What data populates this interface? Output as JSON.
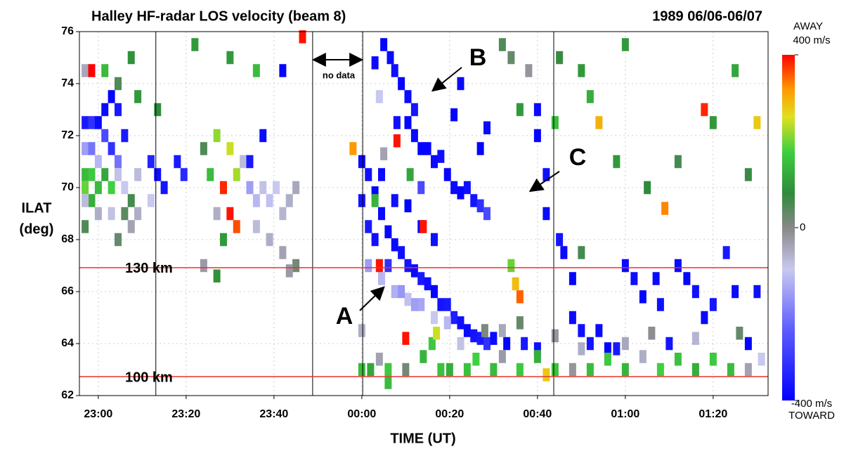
{
  "chart_data": {
    "type": "heatmap",
    "title": "Halley HF-radar LOS velocity (beam 8)",
    "subtitle": "1989 06/06-06/07",
    "ylabel": [
      "ILAT",
      "(deg)"
    ],
    "xlabel": "TIME (UT)",
    "xlim": [
      -4.3,
      152.5
    ],
    "xticks": [
      {
        "value": 0,
        "label": "23:00"
      },
      {
        "value": 20,
        "label": "23:20"
      },
      {
        "value": 40,
        "label": "23:40"
      },
      {
        "value": 60,
        "label": "00:00"
      },
      {
        "value": 80,
        "label": "00:20"
      },
      {
        "value": 100,
        "label": "00:40"
      },
      {
        "value": 120,
        "label": "01:00"
      },
      {
        "value": 140,
        "label": "01:20"
      }
    ],
    "ylim": [
      62,
      76
    ],
    "yticks": [
      62,
      64,
      66,
      68,
      70,
      72,
      74,
      76
    ],
    "grid": true,
    "clim": [
      -400,
      400
    ],
    "cticks": [
      {
        "value": 400,
        "label": "400 m/s"
      },
      {
        "value": 0,
        "label": "0"
      },
      {
        "value": -400,
        "label": "-400 m/s"
      }
    ],
    "ctop": "AWAY",
    "cbottom": "TOWARD",
    "hlines": [
      {
        "value": 66.92,
        "label": "130 km",
        "color": "#e8332f"
      },
      {
        "value": 62.73,
        "label": "100 km",
        "color": "#e8332f"
      }
    ],
    "vlines": [
      13.1,
      48.8,
      60.2,
      103.7
    ],
    "annotations": [
      "A",
      "B",
      "C",
      "no data"
    ],
    "cells": [
      [
        -3,
        72.5,
        -350
      ],
      [
        -1.5,
        72.5,
        -300
      ],
      [
        0,
        72.5,
        -380
      ],
      [
        1.5,
        73,
        -380
      ],
      [
        3,
        73.5,
        -390
      ],
      [
        4.5,
        73,
        -350
      ],
      [
        1.5,
        72,
        -250
      ],
      [
        -3,
        71.5,
        -150
      ],
      [
        -1.5,
        71.5,
        -200
      ],
      [
        0,
        71,
        -120
      ],
      [
        3,
        71.5,
        -300
      ],
      [
        4.5,
        71,
        -200
      ],
      [
        6,
        72,
        -350
      ],
      [
        -3,
        70.5,
        150
      ],
      [
        -1.5,
        70.5,
        170
      ],
      [
        0,
        70,
        150
      ],
      [
        1.5,
        70.5,
        120
      ],
      [
        3,
        70,
        180
      ],
      [
        -3,
        70,
        200
      ],
      [
        -1.5,
        69.5,
        130
      ],
      [
        4.5,
        70.5,
        -90
      ],
      [
        6,
        70,
        -100
      ],
      [
        7.5,
        69.5,
        60
      ],
      [
        9,
        70.5,
        -80
      ],
      [
        -3,
        69.5,
        -80
      ],
      [
        0,
        69,
        -60
      ],
      [
        3,
        69,
        -90
      ],
      [
        6,
        69,
        40
      ],
      [
        9,
        69,
        -60
      ],
      [
        -3,
        68.5,
        50
      ],
      [
        4.5,
        68,
        30
      ],
      [
        7.5,
        68.5,
        -40
      ],
      [
        12,
        71,
        -330
      ],
      [
        13.5,
        70.5,
        -370
      ],
      [
        15,
        70,
        -360
      ],
      [
        12,
        69.5,
        -100
      ],
      [
        18,
        71,
        -350
      ],
      [
        19.5,
        70.5,
        -320
      ],
      [
        24,
        71.5,
        50
      ],
      [
        25.5,
        70.5,
        150
      ],
      [
        27,
        72,
        220
      ],
      [
        28.5,
        70,
        380
      ],
      [
        30,
        69,
        390
      ],
      [
        30,
        71.5,
        250
      ],
      [
        31.5,
        70.5,
        230
      ],
      [
        31.5,
        68.5,
        360
      ],
      [
        33,
        71,
        -80
      ],
      [
        28.5,
        68,
        100
      ],
      [
        27,
        69,
        -60
      ],
      [
        34.5,
        70,
        -150
      ],
      [
        36,
        69.5,
        -120
      ],
      [
        37.5,
        70,
        -90
      ],
      [
        39,
        69.5,
        -110
      ],
      [
        40.5,
        70,
        -100
      ],
      [
        42,
        69,
        -70
      ],
      [
        43.5,
        69.5,
        -60
      ],
      [
        45,
        70,
        -50
      ],
      [
        36,
        68.5,
        -80
      ],
      [
        39,
        68,
        -60
      ],
      [
        42,
        67.5,
        -40
      ],
      [
        45,
        67,
        20
      ],
      [
        43.5,
        66.8,
        -30
      ],
      [
        34.5,
        71,
        -350
      ],
      [
        37.5,
        72,
        -380
      ],
      [
        46.5,
        75.8,
        390
      ],
      [
        -3,
        74.5,
        -50
      ],
      [
        -1.5,
        74.5,
        400
      ],
      [
        1.5,
        74.5,
        150
      ],
      [
        4.5,
        74,
        50
      ],
      [
        9,
        73.5,
        100
      ],
      [
        13.5,
        73,
        80
      ],
      [
        7.5,
        75,
        90
      ],
      [
        22,
        75.5,
        100
      ],
      [
        30,
        75,
        100
      ],
      [
        42,
        74.5,
        -390
      ],
      [
        36,
        74.5,
        150
      ],
      [
        24,
        67,
        -30
      ],
      [
        27,
        66.6,
        90
      ],
      [
        60,
        71,
        -380
      ],
      [
        61.5,
        70.5,
        -370
      ],
      [
        60,
        69.5,
        -360
      ],
      [
        63,
        69.8,
        -390
      ],
      [
        61.5,
        68.5,
        -350
      ],
      [
        64.5,
        69,
        -380
      ],
      [
        63,
        68,
        -370
      ],
      [
        66,
        68.3,
        -390
      ],
      [
        67.5,
        67.8,
        -380
      ],
      [
        66,
        67,
        -300
      ],
      [
        69,
        67.5,
        -370
      ],
      [
        70.5,
        67,
        -360
      ],
      [
        72,
        66.8,
        -380
      ],
      [
        73.5,
        66.5,
        -350
      ],
      [
        75,
        66.3,
        -370
      ],
      [
        76.5,
        66,
        -390
      ],
      [
        78,
        65.5,
        -360
      ],
      [
        79.5,
        65.5,
        -350
      ],
      [
        81,
        65,
        -340
      ],
      [
        82.5,
        64.8,
        -370
      ],
      [
        84,
        64.5,
        -380
      ],
      [
        85.5,
        64.3,
        -360
      ],
      [
        87,
        64.2,
        -350
      ],
      [
        88.5,
        64,
        -300
      ],
      [
        90,
        64.2,
        -380
      ],
      [
        93,
        64,
        -390
      ],
      [
        97,
        64,
        -350
      ],
      [
        100,
        63.8,
        -370
      ],
      [
        61.5,
        67,
        -150
      ],
      [
        64.5,
        66.5,
        -120
      ],
      [
        67.5,
        66,
        -130
      ],
      [
        70.5,
        65.7,
        -110
      ],
      [
        73.5,
        65.5,
        -140
      ],
      [
        76.5,
        65,
        -100
      ],
      [
        79.5,
        64.8,
        -120
      ],
      [
        82.5,
        64,
        -90
      ],
      [
        69,
        66,
        -160
      ],
      [
        72,
        65.5,
        -150
      ],
      [
        64.5,
        70.5,
        -380
      ],
      [
        67.5,
        69.5,
        -370
      ],
      [
        70.5,
        69.3,
        -390
      ],
      [
        73.5,
        68.5,
        -380
      ],
      [
        76.5,
        68,
        -370
      ],
      [
        73.5,
        70,
        -250
      ],
      [
        65,
        75.5,
        -390
      ],
      [
        66.5,
        75,
        -380
      ],
      [
        67.5,
        74.5,
        -370
      ],
      [
        69,
        74,
        -390
      ],
      [
        70.5,
        73.5,
        -380
      ],
      [
        70.5,
        72.5,
        -390
      ],
      [
        72,
        73,
        -360
      ],
      [
        72,
        72,
        -380
      ],
      [
        73.5,
        71.5,
        -390
      ],
      [
        68,
        72.5,
        -370
      ],
      [
        63,
        74.8,
        -380
      ],
      [
        75,
        71.5,
        -390
      ],
      [
        76.5,
        71,
        -380
      ],
      [
        78,
        71.2,
        -370
      ],
      [
        79.5,
        70.5,
        -390
      ],
      [
        81,
        70,
        -380
      ],
      [
        82.5,
        69.8,
        -390
      ],
      [
        84,
        70,
        -370
      ],
      [
        85.5,
        69.5,
        -360
      ],
      [
        87,
        69.3,
        -300
      ],
      [
        88.5,
        69,
        -250
      ],
      [
        87,
        71.5,
        -390
      ],
      [
        88.5,
        72.3,
        -380
      ],
      [
        81,
        72.8,
        -390
      ],
      [
        82.5,
        74,
        -380
      ],
      [
        100,
        73,
        -380
      ],
      [
        100,
        72,
        -390
      ],
      [
        102,
        70.5,
        -370
      ],
      [
        102,
        69,
        -380
      ],
      [
        105,
        68,
        -360
      ],
      [
        106,
        67.5,
        -380
      ],
      [
        108,
        66.5,
        -390
      ],
      [
        108,
        65,
        -380
      ],
      [
        110,
        64.5,
        -370
      ],
      [
        112,
        64,
        -360
      ],
      [
        114,
        64.5,
        -380
      ],
      [
        116,
        63.8,
        -390
      ],
      [
        118,
        63.8,
        -350
      ],
      [
        120,
        67,
        -380
      ],
      [
        122,
        66.5,
        -370
      ],
      [
        124,
        65.8,
        -390
      ],
      [
        127,
        66.5,
        -380
      ],
      [
        128,
        65.5,
        -370
      ],
      [
        130,
        64,
        -360
      ],
      [
        132,
        67,
        -380
      ],
      [
        134,
        66.5,
        -390
      ],
      [
        136,
        66,
        -370
      ],
      [
        138,
        65,
        -380
      ],
      [
        140,
        65.5,
        -360
      ],
      [
        143,
        67.5,
        -350
      ],
      [
        145,
        66,
        -380
      ],
      [
        148,
        64,
        -390
      ],
      [
        150,
        66,
        -370
      ],
      [
        60,
        63,
        150
      ],
      [
        62,
        63,
        120
      ],
      [
        64,
        63.4,
        -40
      ],
      [
        66,
        63,
        170
      ],
      [
        70,
        63,
        20
      ],
      [
        74,
        63.5,
        140
      ],
      [
        78,
        63,
        160
      ],
      [
        80,
        63,
        130
      ],
      [
        84,
        63,
        160
      ],
      [
        86,
        63.4,
        180
      ],
      [
        90,
        63,
        150
      ],
      [
        92,
        63.5,
        -30
      ],
      [
        96,
        63,
        170
      ],
      [
        100,
        63.5,
        130
      ],
      [
        104,
        63,
        160
      ],
      [
        108,
        63,
        -20
      ],
      [
        112,
        63,
        150
      ],
      [
        116,
        63.4,
        170
      ],
      [
        120,
        63,
        140
      ],
      [
        124,
        63.5,
        -60
      ],
      [
        128,
        63,
        180
      ],
      [
        132,
        63.4,
        160
      ],
      [
        136,
        63,
        130
      ],
      [
        140,
        63.4,
        170
      ],
      [
        144,
        63,
        150
      ],
      [
        148,
        63,
        -40
      ],
      [
        151,
        63.4,
        -100
      ],
      [
        102,
        62.8,
        280
      ],
      [
        88,
        64.5,
        10
      ],
      [
        92,
        64.5,
        -50
      ],
      [
        96,
        64.8,
        30
      ],
      [
        104,
        64.3,
        -20
      ],
      [
        110,
        63.8,
        -60
      ],
      [
        120,
        64,
        -50
      ],
      [
        126,
        64.4,
        -10
      ],
      [
        136,
        64.2,
        -70
      ],
      [
        146,
        64.4,
        30
      ],
      [
        92,
        75.5,
        50
      ],
      [
        94,
        75,
        30
      ],
      [
        96,
        73,
        100
      ],
      [
        98,
        74.5,
        -20
      ],
      [
        105,
        75,
        70
      ],
      [
        104,
        72.5,
        150
      ],
      [
        110,
        74.5,
        100
      ],
      [
        112,
        73.5,
        130
      ],
      [
        114,
        72.5,
        300
      ],
      [
        118,
        71,
        100
      ],
      [
        125,
        70,
        80
      ],
      [
        129,
        69.2,
        330
      ],
      [
        132,
        71,
        60
      ],
      [
        140,
        72.5,
        100
      ],
      [
        145,
        74.5,
        120
      ],
      [
        150,
        72.5,
        280
      ],
      [
        148,
        70.5,
        70
      ],
      [
        138,
        73,
        380
      ],
      [
        120,
        75.5,
        100
      ],
      [
        110,
        67.5,
        60
      ],
      [
        96,
        65.8,
        350
      ],
      [
        95,
        66.3,
        290
      ],
      [
        94,
        67,
        200
      ],
      [
        74,
        68.5,
        390
      ],
      [
        70,
        64.2,
        390
      ],
      [
        66,
        62.5,
        150
      ],
      [
        60,
        64.5,
        -60
      ],
      [
        63,
        69.5,
        140
      ],
      [
        65,
        71.3,
        -40
      ],
      [
        64,
        73.5,
        -100
      ],
      [
        68,
        71.8,
        390
      ],
      [
        58,
        71.5,
        320
      ],
      [
        71,
        70.5,
        120
      ],
      [
        64,
        67,
        390
      ],
      [
        76,
        64,
        170
      ],
      [
        77,
        64.4,
        250
      ]
    ]
  }
}
